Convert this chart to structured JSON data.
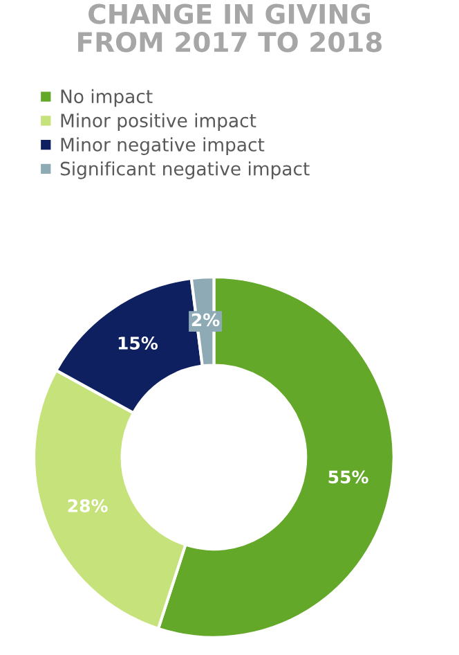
{
  "chart_data": {
    "type": "donut",
    "title": "CHANGE IN GIVING\nFROM 2017 TO 2018",
    "categories": [
      "No impact",
      "Minor positive impact",
      "Minor negative impact",
      "Significant negative impact"
    ],
    "values": [
      55,
      28,
      15,
      2
    ],
    "colors": [
      "#63a829",
      "#c5e37a",
      "#0e2060",
      "#8eabb5"
    ],
    "value_labels": [
      "55%",
      "28%",
      "15%",
      "2%"
    ],
    "legend": "top"
  }
}
